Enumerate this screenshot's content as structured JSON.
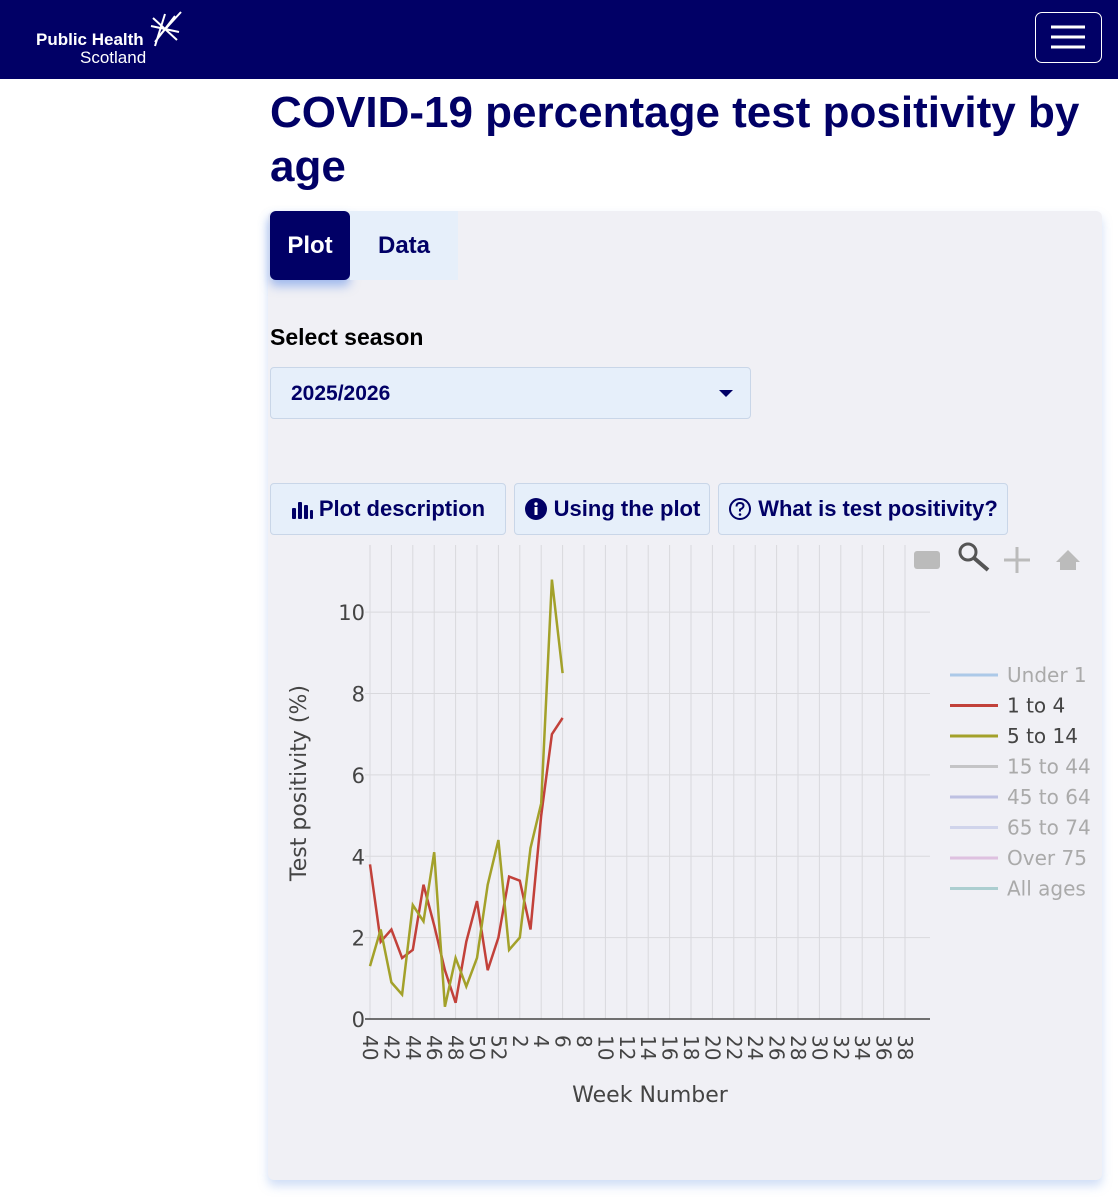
{
  "header": {
    "logo_line1": "Public Health",
    "logo_line2": "Scotland"
  },
  "page_title": "COVID-19 percentage test positivity by age",
  "tabs": [
    "Plot",
    "Data"
  ],
  "select": {
    "label": "Select season",
    "value": "2025/2026"
  },
  "buttons": [
    "Plot description",
    "Using the plot",
    "What is test positivity?"
  ],
  "chart_data": {
    "type": "line",
    "x_label": "Week Number",
    "y_label": "Test positivity (%)",
    "categories": [
      "40",
      null,
      "42",
      null,
      "44",
      null,
      "46",
      null,
      "48",
      null,
      "50",
      null,
      "52",
      null,
      "2",
      null,
      "4",
      null,
      "6",
      null,
      "8",
      null,
      "10",
      null,
      "12",
      null,
      "14",
      null,
      "16",
      null,
      "18",
      null,
      "20",
      null,
      "22",
      null,
      "24",
      null,
      "26",
      null,
      "28",
      null,
      "30",
      null,
      "32",
      null,
      "34",
      null,
      "36",
      null,
      "38",
      null
    ],
    "ylim": [
      0,
      11.65
    ],
    "yticks": [
      0,
      2,
      4,
      6,
      8,
      10
    ],
    "grid": true,
    "series": [
      {
        "name": "Under 1",
        "color": "#7fb0e0",
        "visible": false
      },
      {
        "name": "1 to 4",
        "color": "#c2413a",
        "visible": true,
        "values": [
          3.8,
          1.9,
          2.2,
          1.5,
          1.7,
          3.3,
          2.3,
          1.2,
          0.4,
          1.9,
          2.9,
          1.2,
          2.0,
          3.5,
          3.4,
          2.2,
          5.0,
          7.0,
          7.4,
          null,
          null,
          null,
          null,
          null,
          null,
          null,
          null,
          null,
          null,
          null,
          null,
          null,
          null,
          null,
          null,
          null,
          null,
          null,
          null,
          null,
          null,
          null,
          null,
          null,
          null,
          null,
          null,
          null,
          null,
          null,
          null,
          null
        ]
      },
      {
        "name": "5 to 14",
        "color": "#a3a12a",
        "visible": true,
        "values": [
          1.3,
          2.2,
          0.9,
          0.6,
          2.8,
          2.4,
          4.1,
          0.3,
          1.5,
          0.8,
          1.5,
          3.3,
          4.4,
          1.7,
          2.0,
          4.2,
          5.3,
          10.8,
          8.5,
          null,
          null,
          null,
          null,
          null,
          null,
          null,
          null,
          null,
          null,
          null,
          null,
          null,
          null,
          null,
          null,
          null,
          null,
          null,
          null,
          null,
          null,
          null,
          null,
          null,
          null,
          null,
          null,
          null,
          null,
          null,
          null,
          null
        ]
      },
      {
        "name": "15 to 44",
        "color": "#a8a8a8",
        "visible": false
      },
      {
        "name": "45 to 64",
        "color": "#9ea3d6",
        "visible": false
      },
      {
        "name": "65 to 74",
        "color": "#bcc3e6",
        "visible": false
      },
      {
        "name": "Over 75",
        "color": "#d3a3d3",
        "visible": false
      },
      {
        "name": "All ages",
        "color": "#7fb8b8",
        "visible": false
      }
    ]
  }
}
